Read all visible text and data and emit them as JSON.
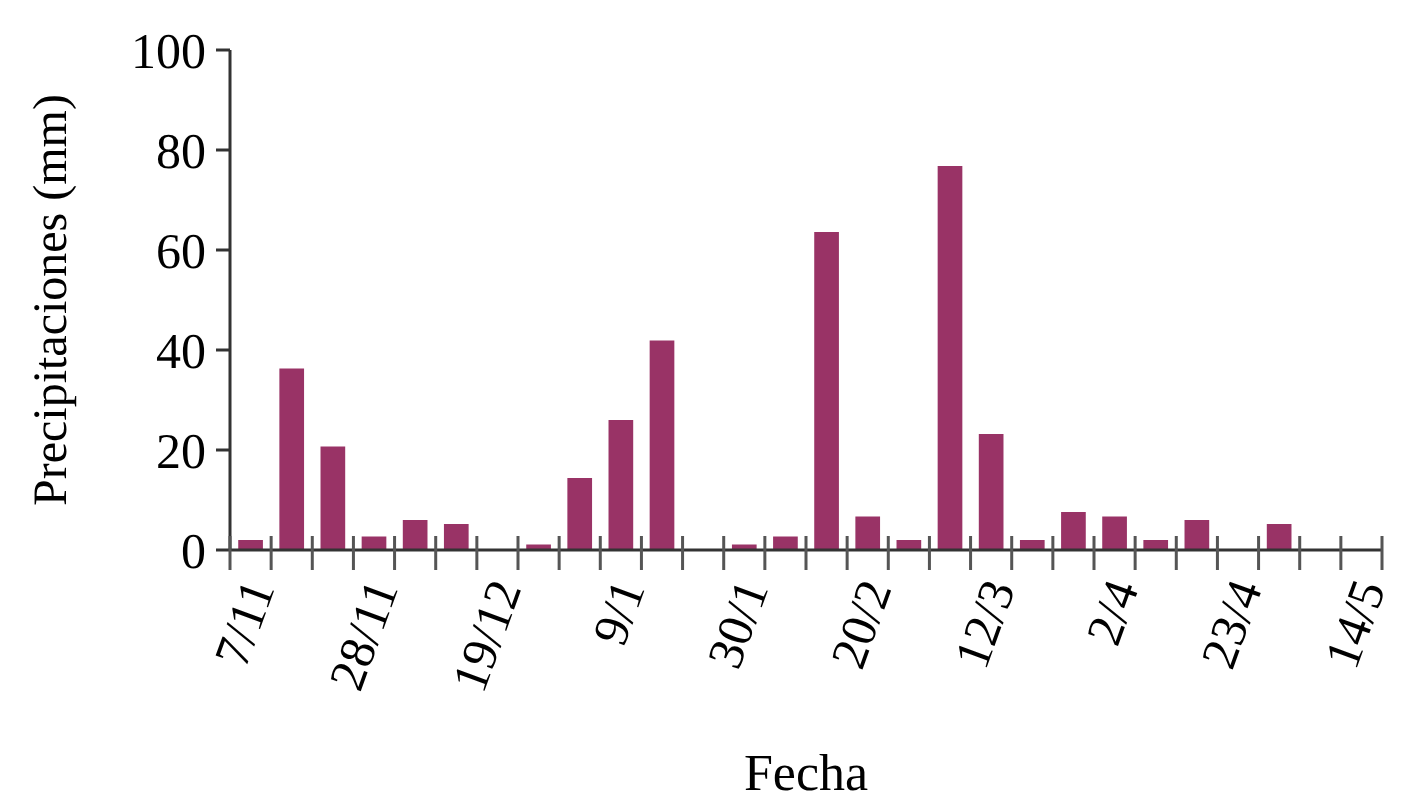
{
  "chart_data": {
    "type": "bar",
    "xlabel": "Fecha",
    "ylabel": "Precipitaciones (mm)",
    "categories": [
      "7/11",
      null,
      null,
      "28/11",
      null,
      null,
      "19/12",
      null,
      null,
      "9/1",
      null,
      null,
      "30/1",
      null,
      null,
      "20/2",
      null,
      null,
      "12/3",
      null,
      null,
      "2/4",
      null,
      null,
      "23/4",
      null,
      null,
      "14/5"
    ],
    "values": [
      2,
      36.3,
      20.7,
      2.7,
      6,
      5.2,
      0,
      1.1,
      14.4,
      26,
      41.9,
      0,
      1.1,
      2.7,
      63.6,
      6.7,
      2,
      76.8,
      23.2,
      2,
      7.6,
      6.7,
      2,
      6,
      0,
      5.2,
      0,
      null
    ],
    "color": "#993366",
    "ylim": [
      0,
      100
    ],
    "yticks": [
      0,
      20,
      40,
      60,
      80,
      100
    ],
    "grid": false
  }
}
